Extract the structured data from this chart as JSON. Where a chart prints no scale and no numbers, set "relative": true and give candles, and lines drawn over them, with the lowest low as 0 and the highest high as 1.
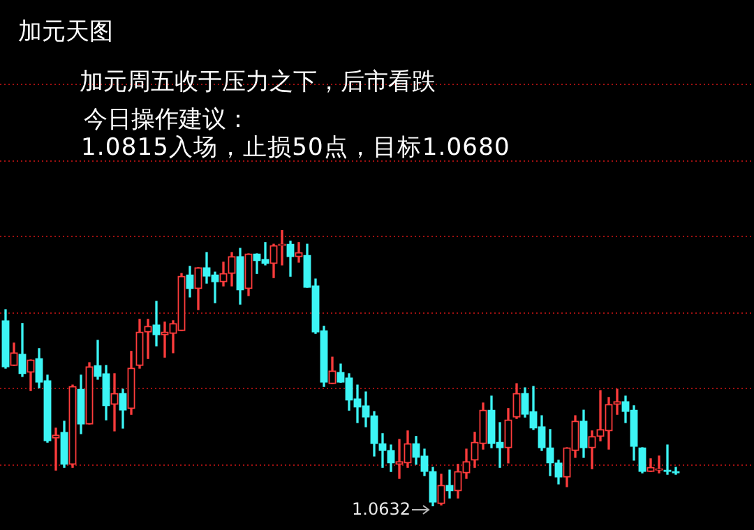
{
  "chart_data": {
    "type": "candlestick",
    "title": "加元天图",
    "annotations": [
      "加元周五收于压力之下，后市看跌",
      "今日操作建议：",
      "1.0815入场，止损50点，目标1.0680",
      "1.0632"
    ],
    "relative": true,
    "ref_lines": [
      {
        "axis": "y",
        "value": 0.152,
        "color": "#a01010",
        "line_style": "dotted"
      },
      {
        "axis": "y",
        "value": 0.427,
        "color": "#a01010",
        "line_style": "dotted"
      },
      {
        "axis": "y",
        "value": 0.703,
        "color": "#a01010",
        "line_style": "dotted"
      },
      {
        "axis": "y",
        "value": 0.979,
        "color": "#a01010",
        "line_style": "dotted"
      },
      {
        "axis": "y",
        "value": 1.255,
        "color": "#a01010",
        "line_style": "dotted"
      },
      {
        "axis": "y",
        "value": 1.53,
        "color": "#a01010",
        "line_style": "dotted"
      }
    ],
    "categories": [
      null,
      null,
      null,
      null,
      null,
      null,
      null,
      null,
      null,
      null,
      null,
      null,
      null,
      null,
      null,
      null,
      null,
      null,
      null,
      null,
      null,
      null,
      null,
      null,
      null,
      null,
      null,
      null,
      null,
      null,
      null,
      null,
      null,
      null,
      null,
      null,
      null,
      null,
      null,
      null,
      null,
      null,
      null,
      null,
      null,
      null,
      null,
      null,
      null,
      null,
      null,
      null,
      null,
      null,
      null,
      null,
      null,
      null,
      null,
      null,
      null,
      null,
      null,
      null,
      null,
      null,
      null,
      null,
      null,
      null,
      null,
      null,
      null,
      null,
      null,
      null,
      null,
      null,
      null,
      null,
      null
    ],
    "ohlc": [
      [
        0.672,
        0.712,
        0.5,
        0.505
      ],
      [
        0.51,
        0.591,
        0.51,
        0.556
      ],
      [
        0.551,
        0.662,
        0.47,
        0.48
      ],
      [
        0.485,
        0.53,
        0.419,
        0.53
      ],
      [
        0.535,
        0.571,
        0.429,
        0.449
      ],
      [
        0.455,
        0.475,
        0.232,
        0.237
      ],
      [
        0.247,
        0.283,
        0.131,
        0.258
      ],
      [
        0.268,
        0.308,
        0.141,
        0.152
      ],
      [
        0.152,
        0.439,
        0.141,
        0.434
      ],
      [
        0.424,
        0.475,
        0.263,
        0.298
      ],
      [
        0.298,
        0.52,
        0.298,
        0.505
      ],
      [
        0.51,
        0.601,
        0.46,
        0.47
      ],
      [
        0.48,
        0.51,
        0.313,
        0.364
      ],
      [
        0.369,
        0.48,
        0.273,
        0.409
      ],
      [
        0.409,
        0.424,
        0.283,
        0.348
      ],
      [
        0.354,
        0.561,
        0.333,
        0.5
      ],
      [
        0.51,
        0.677,
        0.5,
        0.631
      ],
      [
        0.631,
        0.677,
        0.535,
        0.652
      ],
      [
        0.657,
        0.742,
        0.581,
        0.621
      ],
      [
        0.621,
        0.667,
        0.54,
        0.631
      ],
      [
        0.626,
        0.672,
        0.556,
        0.662
      ],
      [
        0.636,
        0.843,
        0.636,
        0.833
      ],
      [
        0.838,
        0.869,
        0.758,
        0.788
      ],
      [
        0.788,
        0.864,
        0.712,
        0.864
      ],
      [
        0.864,
        0.919,
        0.808,
        0.833
      ],
      [
        0.838,
        0.848,
        0.737,
        0.813
      ],
      [
        0.813,
        0.884,
        0.798,
        0.843
      ],
      [
        0.843,
        0.919,
        0.798,
        0.904
      ],
      [
        0.904,
        0.934,
        0.732,
        0.783
      ],
      [
        0.788,
        0.914,
        0.763,
        0.914
      ],
      [
        0.914,
        0.914,
        0.843,
        0.889
      ],
      [
        0.894,
        0.955,
        0.874,
        0.879
      ],
      [
        0.879,
        0.949,
        0.828,
        0.944
      ],
      [
        0.944,
        1,
        0.874,
        0.949
      ],
      [
        0.949,
        0.96,
        0.833,
        0.904
      ],
      [
        0.904,
        0.955,
        0.884,
        0.919
      ],
      [
        0.909,
        0.949,
        0.793,
        0.793
      ],
      [
        0.798,
        0.823,
        0.626,
        0.631
      ],
      [
        0.636,
        0.652,
        0.434,
        0.449
      ],
      [
        0.444,
        0.54,
        0.444,
        0.49
      ],
      [
        0.485,
        0.515,
        0.449,
        0.449
      ],
      [
        0.465,
        0.48,
        0.348,
        0.384
      ],
      [
        0.389,
        0.439,
        0.303,
        0.359
      ],
      [
        0.364,
        0.414,
        0.288,
        0.323
      ],
      [
        0.328,
        0.343,
        0.182,
        0.227
      ],
      [
        0.227,
        0.263,
        0.141,
        0.202
      ],
      [
        0.202,
        0.222,
        0.126,
        0.157
      ],
      [
        0.152,
        0.242,
        0.101,
        0.162
      ],
      [
        0.157,
        0.273,
        0.141,
        0.227
      ],
      [
        0.227,
        0.253,
        0.152,
        0.177
      ],
      [
        0.182,
        0.207,
        0.111,
        0.126
      ],
      [
        0.126,
        0.141,
        0,
        0.015
      ],
      [
        0.01,
        0.116,
        0.005,
        0.076
      ],
      [
        0.076,
        0.131,
        0.03,
        0.056
      ],
      [
        0.056,
        0.152,
        0.03,
        0.126
      ],
      [
        0.121,
        0.207,
        0.101,
        0.162
      ],
      [
        0.167,
        0.268,
        0.141,
        0.232
      ],
      [
        0.227,
        0.374,
        0.207,
        0.348
      ],
      [
        0.348,
        0.399,
        0.212,
        0.227
      ],
      [
        0.232,
        0.303,
        0.141,
        0.212
      ],
      [
        0.212,
        0.354,
        0.157,
        0.313
      ],
      [
        0.323,
        0.444,
        0.318,
        0.409
      ],
      [
        0.409,
        0.429,
        0.323,
        0.333
      ],
      [
        0.343,
        0.434,
        0.278,
        0.283
      ],
      [
        0.288,
        0.328,
        0.202,
        0.212
      ],
      [
        0.212,
        0.278,
        0.111,
        0.157
      ],
      [
        0.157,
        0.167,
        0.081,
        0.106
      ],
      [
        0.106,
        0.212,
        0.071,
        0.212
      ],
      [
        0.202,
        0.328,
        0.177,
        0.308
      ],
      [
        0.308,
        0.348,
        0.177,
        0.212
      ],
      [
        0.212,
        0.273,
        0.136,
        0.253
      ],
      [
        0.253,
        0.419,
        0.237,
        0.278
      ],
      [
        0.273,
        0.394,
        0.207,
        0.369
      ],
      [
        0.369,
        0.424,
        0.333,
        0.379
      ],
      [
        0.379,
        0.399,
        0.303,
        0.343
      ],
      [
        0.348,
        0.364,
        0.167,
        0.217
      ],
      [
        0.212,
        0.212,
        0.121,
        0.126
      ],
      [
        0.126,
        0.172,
        0.126,
        0.141
      ],
      [
        0.131,
        0.182,
        0.121,
        0.136
      ],
      [
        0.131,
        0.222,
        0.116,
        0.126
      ],
      [
        0.126,
        0.141,
        0.116,
        0.121
      ]
    ]
  }
}
